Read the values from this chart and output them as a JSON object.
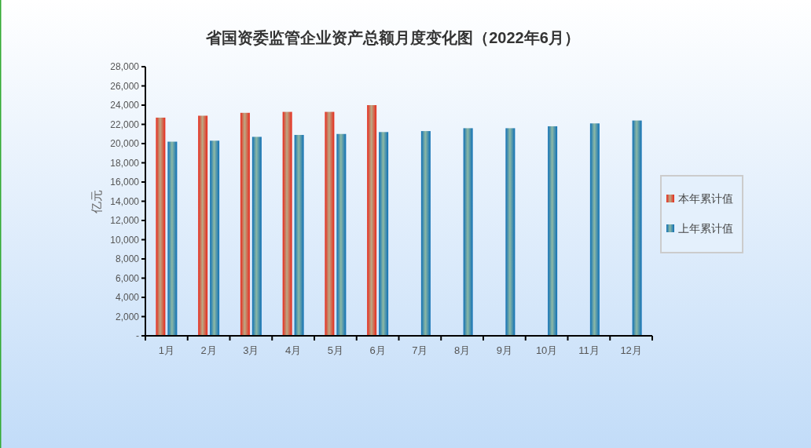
{
  "chart_data": {
    "type": "bar",
    "title": "省国资委监管企业资产总额月度变化图（2022年6月）",
    "ylabel": "亿元",
    "categories": [
      "1月",
      "2月",
      "3月",
      "4月",
      "5月",
      "6月",
      "7月",
      "8月",
      "9月",
      "10月",
      "11月",
      "12月"
    ],
    "series": [
      {
        "name": "本年累计值",
        "color": "#e8291c",
        "values": [
          22700,
          22900,
          23200,
          23300,
          23300,
          24000,
          null,
          null,
          null,
          null,
          null,
          null
        ]
      },
      {
        "name": "上年累计值",
        "color": "#0e6fb5",
        "values": [
          20200,
          20300,
          20700,
          20900,
          21000,
          21200,
          21300,
          21600,
          21600,
          21800,
          22100,
          22400
        ]
      }
    ],
    "ylim": [
      0,
      28000
    ],
    "yticks": [
      {
        "value": 0,
        "label": "-"
      },
      {
        "value": 2000,
        "label": "2,000"
      },
      {
        "value": 4000,
        "label": "4,000"
      },
      {
        "value": 6000,
        "label": "6,000"
      },
      {
        "value": 8000,
        "label": "8,000"
      },
      {
        "value": 10000,
        "label": "10,000"
      },
      {
        "value": 12000,
        "label": "12,000"
      },
      {
        "value": 14000,
        "label": "14,000"
      },
      {
        "value": 16000,
        "label": "16,000"
      },
      {
        "value": 18000,
        "label": "18,000"
      },
      {
        "value": 20000,
        "label": "20,000"
      },
      {
        "value": 22000,
        "label": "22,000"
      },
      {
        "value": 24000,
        "label": "24,000"
      },
      {
        "value": 26000,
        "label": "26,000"
      },
      {
        "value": 28000,
        "label": "28,000"
      }
    ],
    "legend": "right"
  }
}
